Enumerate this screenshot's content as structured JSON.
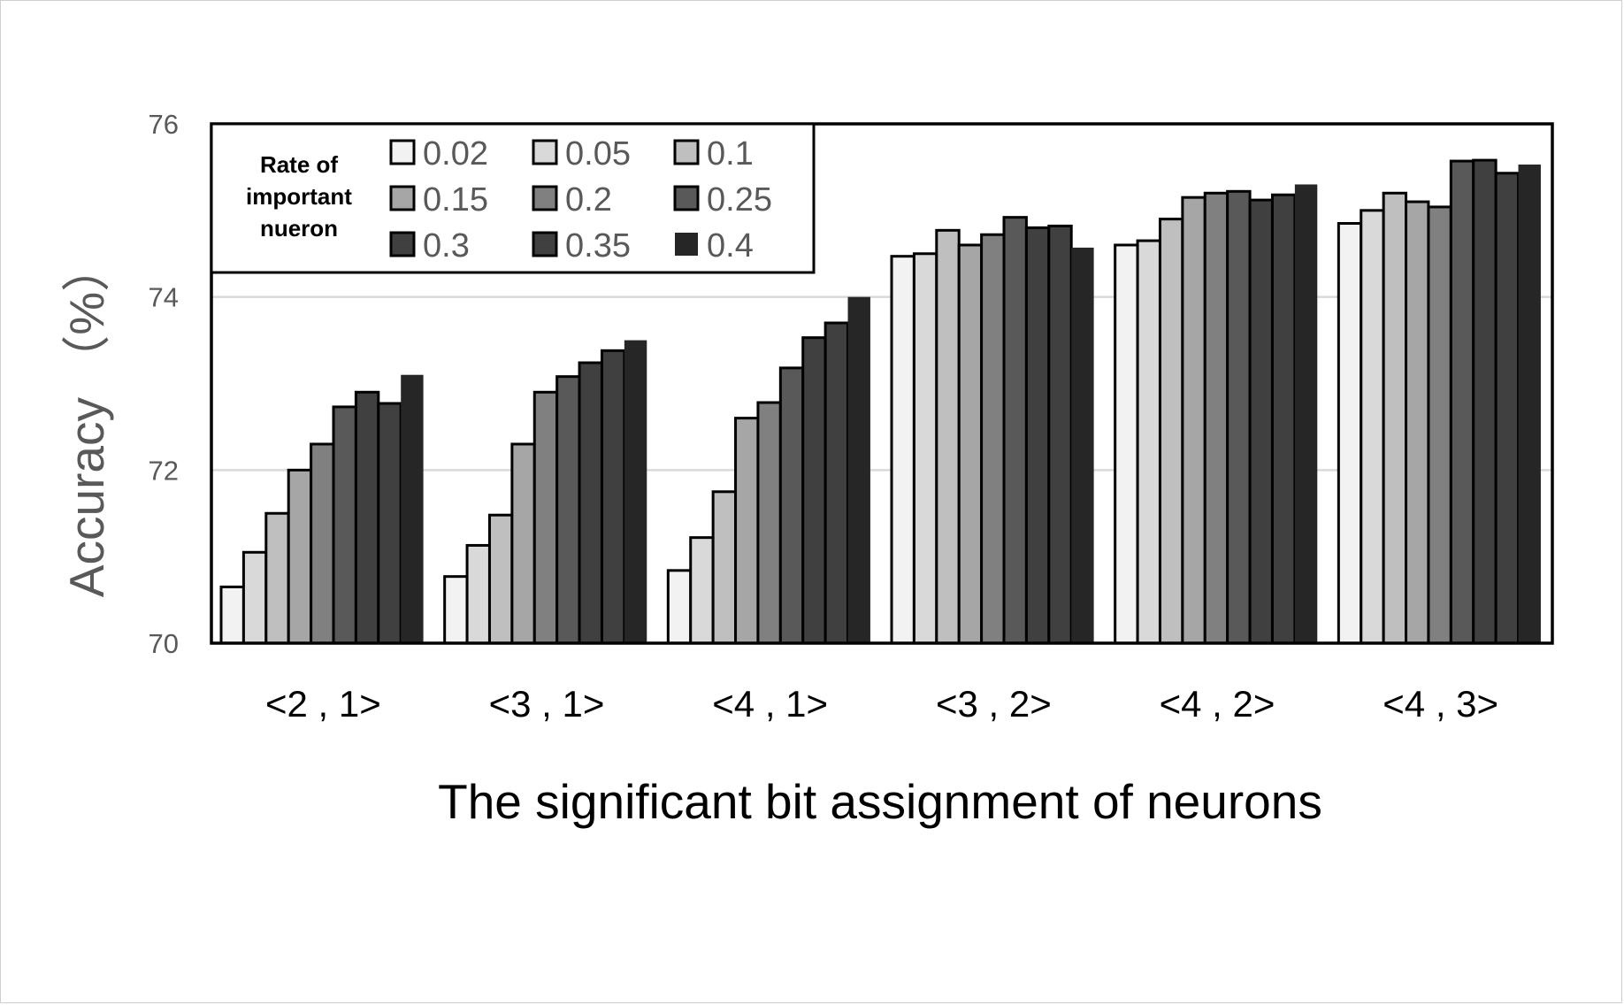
{
  "chart_data": {
    "type": "bar",
    "xlabel": "The significant bit  assignment of neurons",
    "ylabel": "Accuracy （%）",
    "ylim": [
      70,
      76
    ],
    "yticks": [
      "70",
      "72",
      "74",
      "76"
    ],
    "grid": true,
    "legend": {
      "placement": "top-left",
      "title_lines": [
        "Rate of",
        "important",
        "nueron"
      ]
    },
    "categories": [
      "<2 , 1>",
      "<3 , 1>",
      "<4 , 1>",
      "<3 , 2>",
      "<4 , 2>",
      "<4 , 3>"
    ],
    "series": [
      {
        "name": "0.02",
        "color": "#f2f2f2",
        "values": [
          70.65,
          70.77,
          70.84,
          74.47,
          74.6,
          74.85
        ]
      },
      {
        "name": "0.05",
        "color": "#d9d9d9",
        "values": [
          71.05,
          71.13,
          71.22,
          74.5,
          74.65,
          75.0
        ]
      },
      {
        "name": "0.1",
        "color": "#bfbfbf",
        "values": [
          71.5,
          71.48,
          71.75,
          74.77,
          74.9,
          75.2
        ]
      },
      {
        "name": "0.15",
        "color": "#a6a6a6",
        "values": [
          72.0,
          72.3,
          72.6,
          74.6,
          75.15,
          75.1
        ]
      },
      {
        "name": "0.2",
        "color": "#808080",
        "values": [
          72.3,
          72.9,
          72.78,
          74.72,
          75.2,
          75.04
        ]
      },
      {
        "name": "0.25",
        "color": "#595959",
        "values": [
          72.73,
          73.08,
          73.18,
          74.92,
          75.22,
          75.57
        ]
      },
      {
        "name": "0.3",
        "color": "#404040",
        "values": [
          72.9,
          73.24,
          73.53,
          74.8,
          75.12,
          75.58
        ]
      },
      {
        "name": "0.35",
        "color": "#404040",
        "values": [
          72.77,
          73.38,
          73.7,
          74.82,
          75.18,
          75.43
        ]
      },
      {
        "name": "0.4",
        "color": "#262626",
        "values": [
          73.1,
          73.5,
          74.0,
          74.57,
          75.3,
          75.53
        ]
      }
    ]
  }
}
